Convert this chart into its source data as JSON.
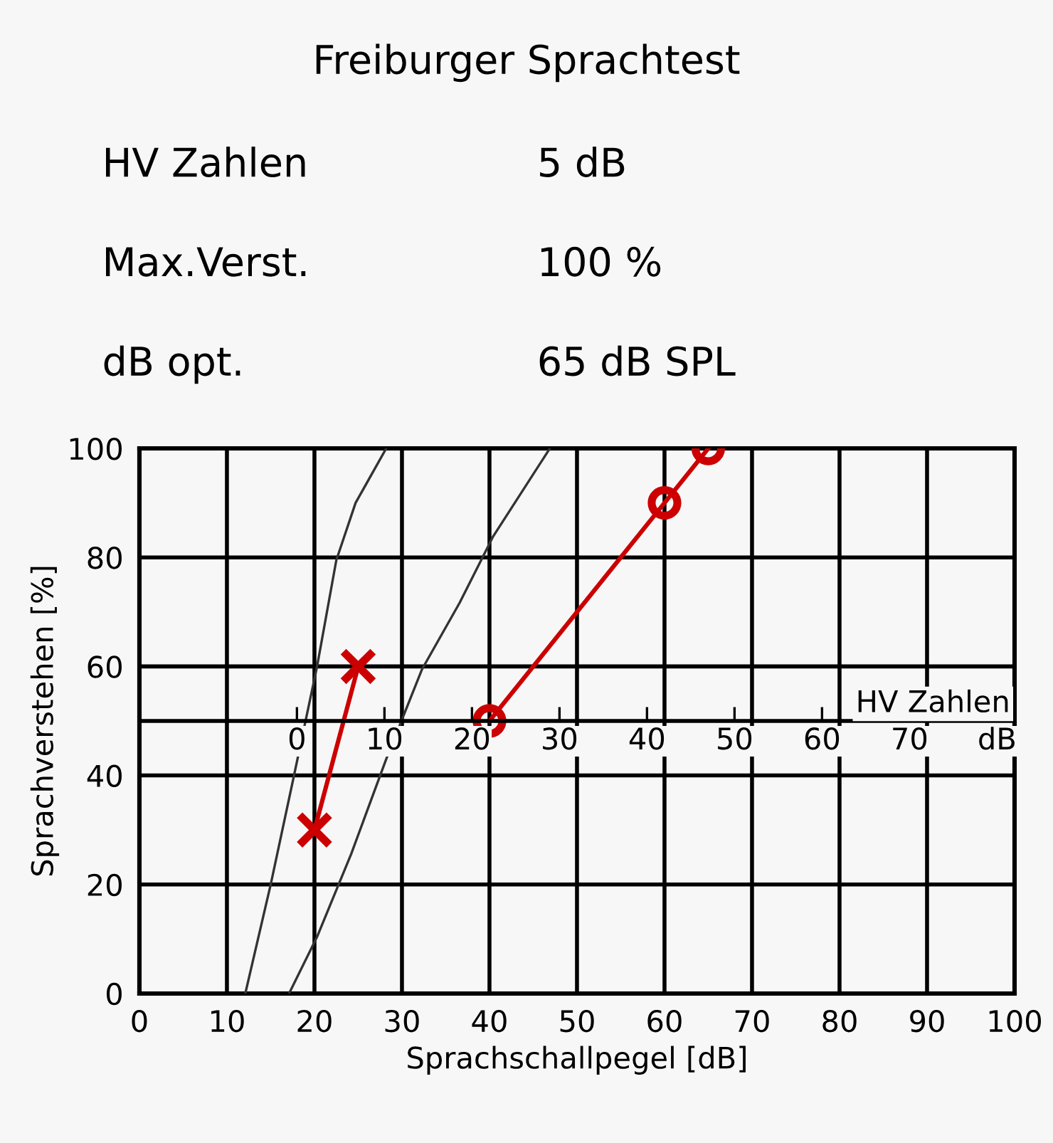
{
  "chart_data": {
    "type": "line",
    "title": "Freiburger Sprachtest",
    "annotations": [
      "HV Zahlen",
      "5 dB",
      "Max.Verst.",
      "100 %",
      "dB opt.",
      "65 dB SPL"
    ],
    "xlabel": "Sprachschallpegel [dB]",
    "ylabel": "Sprachverstehen [%]",
    "xlim": [
      0,
      100
    ],
    "xticks": [
      0,
      10,
      20,
      30,
      40,
      50,
      60,
      70,
      80,
      90,
      100
    ],
    "ylim": [
      0,
      100
    ],
    "yticks": [
      0,
      20,
      40,
      60,
      80,
      100
    ],
    "x2label": "HV Zahlen",
    "x2lim": [
      -18,
      82
    ],
    "x2ticks": [
      0,
      10,
      20,
      30,
      40,
      50,
      60,
      70,
      {
        "value": 80,
        "label": "dB"
      }
    ],
    "grid": true,
    "legend": false,
    "series": [
      {
        "color": "#333333",
        "marker": "none",
        "x": [
          12.1,
          15.0,
          17.6,
          20.3,
          22.5,
          24.7,
          28.2
        ],
        "values": [
          0,
          20,
          39.5,
          60,
          79.5,
          90,
          100
        ]
      },
      {
        "color": "#333333",
        "marker": "none",
        "x": [
          17.1,
          20.3,
          24.2,
          28.2,
          32.3,
          36.6,
          40.4,
          46.9
        ],
        "values": [
          0,
          10.4,
          25.6,
          43,
          59.5,
          71.7,
          83.8,
          100
        ]
      },
      {
        "color": "#cc0000",
        "marker": "cross",
        "x": [
          20,
          25
        ],
        "values": [
          30,
          60
        ]
      },
      {
        "color": "#cc0000",
        "marker": "circle",
        "x": [
          40,
          60,
          65
        ],
        "values": [
          50,
          90,
          100
        ]
      }
    ]
  }
}
